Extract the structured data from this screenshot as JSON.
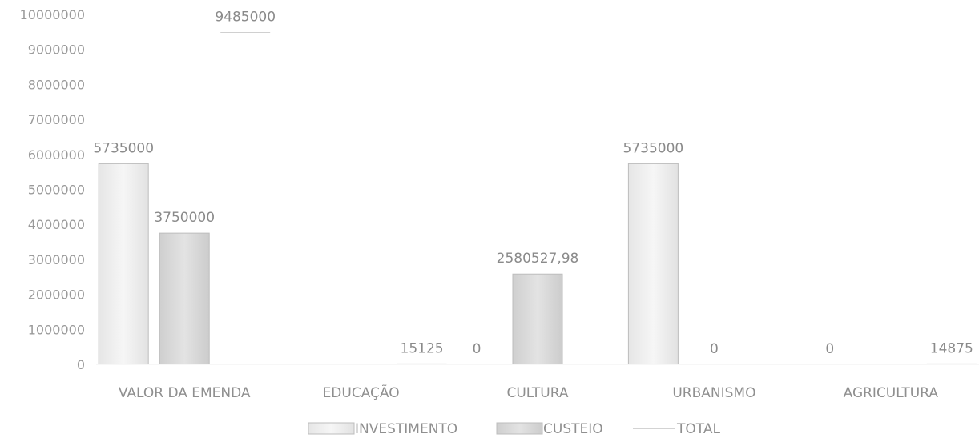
{
  "chart_data": {
    "type": "bar",
    "categories": [
      "VALOR DA EMENDA",
      "EDUCAÇÃO",
      "CULTURA",
      "URBANISMO",
      "AGRICULTURA"
    ],
    "series": [
      {
        "name": "INVESTIMENTO",
        "values": [
          5735000,
          0,
          0,
          5735000,
          0
        ],
        "labels": [
          "5735000",
          "",
          "0",
          "5735000",
          "0"
        ]
      },
      {
        "name": "CUSTEIO",
        "values": [
          3750000,
          0,
          2580527.98,
          0,
          0
        ],
        "labels": [
          "3750000",
          "",
          "2580527,98",
          "0",
          ""
        ]
      },
      {
        "name": "TOTAL",
        "values": [
          9485000,
          15125,
          null,
          null,
          14875
        ],
        "labels": [
          "9485000",
          "15125",
          "",
          "",
          "14875"
        ]
      }
    ],
    "ylim": [
      0,
      10000000
    ],
    "yticks": [
      "0",
      "1000000",
      "2000000",
      "3000000",
      "4000000",
      "5000000",
      "6000000",
      "7000000",
      "8000000",
      "9000000",
      "10000000"
    ],
    "legend": "bottom",
    "grid": false,
    "colors": {
      "investimento": "#f1f1f1",
      "custeio": "#dcdcdc",
      "total": "#d0d0d0",
      "border": "#bdbdbd",
      "text": "#8f8f8f"
    }
  }
}
